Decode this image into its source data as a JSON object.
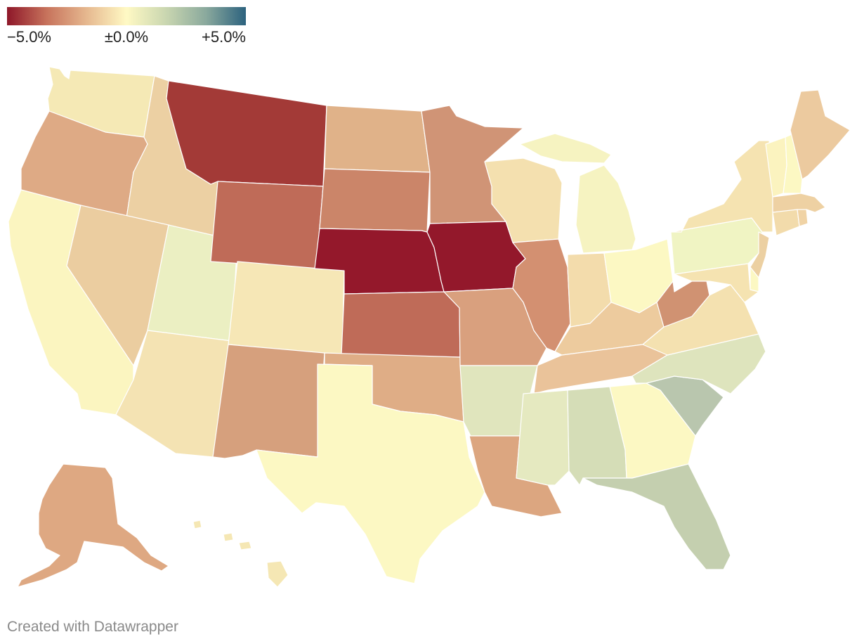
{
  "legend": {
    "min_label": "−5.0%",
    "mid_label": "±0.0%",
    "max_label": "+5.0%",
    "colors": [
      "#8e1729",
      "#c7735c",
      "#e6b88f",
      "#fff9c4",
      "#c9d6b0",
      "#8aa99d",
      "#2c627e"
    ]
  },
  "credit": "Created with Datawrapper",
  "states": [
    {
      "id": "WA",
      "color": "#f5e9b5"
    },
    {
      "id": "OR",
      "color": "#deaa85"
    },
    {
      "id": "CA",
      "color": "#fbf5c0"
    },
    {
      "id": "ID",
      "color": "#ecd0a3"
    },
    {
      "id": "NV",
      "color": "#ebcda0"
    },
    {
      "id": "UT",
      "color": "#ebefc2"
    },
    {
      "id": "AZ",
      "color": "#f4e3b3"
    },
    {
      "id": "MT",
      "color": "#a33a37"
    },
    {
      "id": "WY",
      "color": "#bf6b58"
    },
    {
      "id": "CO",
      "color": "#f6e7b6"
    },
    {
      "id": "NM",
      "color": "#d6a07d"
    },
    {
      "id": "ND",
      "color": "#e0b289"
    },
    {
      "id": "SD",
      "color": "#cb8569"
    },
    {
      "id": "NE",
      "color": "#94182b"
    },
    {
      "id": "KS",
      "color": "#bf6b58"
    },
    {
      "id": "OK",
      "color": "#dfad86"
    },
    {
      "id": "TX",
      "color": "#fcf8c3"
    },
    {
      "id": "MN",
      "color": "#d09476"
    },
    {
      "id": "IA",
      "color": "#93182b"
    },
    {
      "id": "MO",
      "color": "#d9a07e"
    },
    {
      "id": "AR",
      "color": "#e0e5bd"
    },
    {
      "id": "LA",
      "color": "#dca680"
    },
    {
      "id": "WI",
      "color": "#f4e0af"
    },
    {
      "id": "IL",
      "color": "#d39071"
    },
    {
      "id": "MI",
      "color": "#f6f3c1"
    },
    {
      "id": "IN",
      "color": "#f3dcac"
    },
    {
      "id": "OH",
      "color": "#fcf8c3"
    },
    {
      "id": "KY",
      "color": "#edcb9e"
    },
    {
      "id": "TN",
      "color": "#eac39a"
    },
    {
      "id": "MS",
      "color": "#e5e9c0"
    },
    {
      "id": "AL",
      "color": "#d5ddb7"
    },
    {
      "id": "GA",
      "color": "#fcf8c3"
    },
    {
      "id": "FL",
      "color": "#c4cfaf"
    },
    {
      "id": "SC",
      "color": "#b9c6ae"
    },
    {
      "id": "NC",
      "color": "#dee4bd"
    },
    {
      "id": "VA",
      "color": "#f4e1b0"
    },
    {
      "id": "WV",
      "color": "#d09272"
    },
    {
      "id": "PA",
      "color": "#f0f4c3"
    },
    {
      "id": "NY",
      "color": "#f5e3b1"
    },
    {
      "id": "VT",
      "color": "#fbf3bf"
    },
    {
      "id": "NH",
      "color": "#fcf8c3"
    },
    {
      "id": "ME",
      "color": "#ecca9f"
    },
    {
      "id": "MA",
      "color": "#eed1a3"
    },
    {
      "id": "CT",
      "color": "#f2dbab"
    },
    {
      "id": "RI",
      "color": "#f0d3a5"
    },
    {
      "id": "NJ",
      "color": "#ecd0a2"
    },
    {
      "id": "DE",
      "color": "#fcf8c3"
    },
    {
      "id": "MD",
      "color": "#f5e3b1"
    },
    {
      "id": "AK",
      "color": "#dea882"
    },
    {
      "id": "HI",
      "color": "#f5e7b4"
    }
  ]
}
